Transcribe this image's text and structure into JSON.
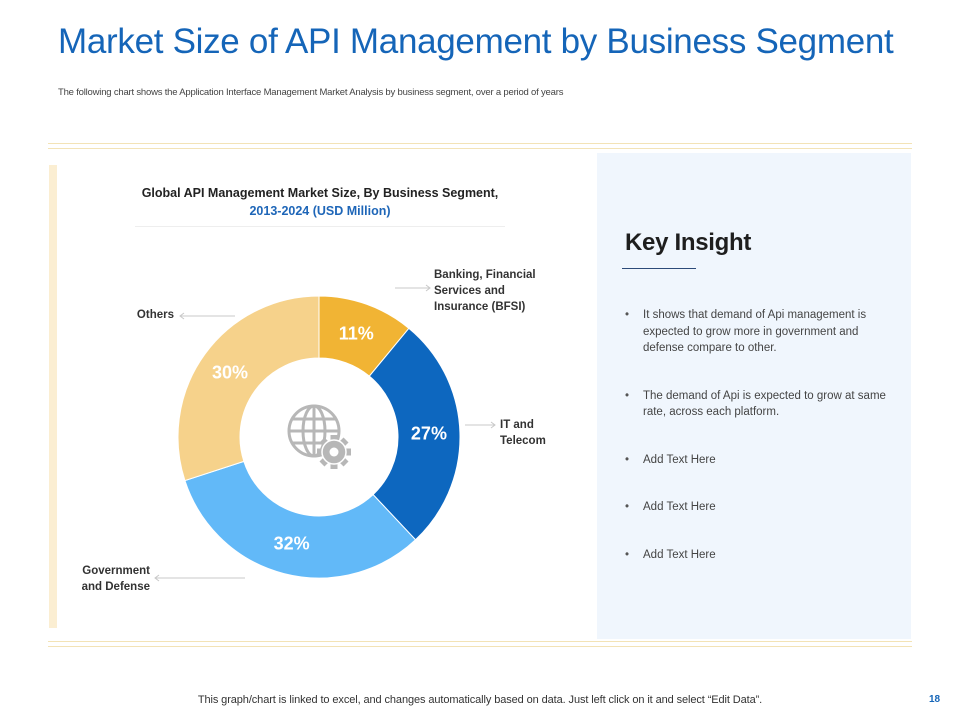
{
  "slide": {
    "title": "Market Size of API Management by Business Segment",
    "subtitle": "The following chart shows the Application Interface Management Market Analysis by business segment, over a period of years",
    "footer": "This graph/chart is linked to excel,  and changes automatically based on data. Just left click on it and select “Edit Data”.",
    "page_number": "18"
  },
  "insight": {
    "title": "Key Insight",
    "bullets": [
      "It shows that demand of Api management is expected to grow more in government and defense compare to other.",
      "The demand of Api is expected to grow at same rate, across each platform.",
      "Add Text Here",
      "Add Text Here",
      "Add Text Here"
    ]
  },
  "chart_data": {
    "type": "pie",
    "variant": "donut",
    "title_line1": "Global API Management Market Size, By Business Segment,",
    "title_line2": "2013-2024 (USD Million)",
    "center_icon": "globe-gear-icon",
    "slices": [
      {
        "label_lines": [
          "Banking, Financial",
          "Services and",
          "Insurance (BFSI)"
        ],
        "value": 11,
        "value_label": "11%",
        "color": "#f1b434"
      },
      {
        "label_lines": [
          "IT and",
          "Telecom"
        ],
        "value": 27,
        "value_label": "27%",
        "color": "#0d67bf"
      },
      {
        "label_lines": [
          "Government",
          "and Defense"
        ],
        "value": 32,
        "value_label": "32%",
        "color": "#62b9f8"
      },
      {
        "label_lines": [
          "Others"
        ],
        "value": 30,
        "value_label": "30%",
        "color": "#f6d28b"
      }
    ]
  }
}
